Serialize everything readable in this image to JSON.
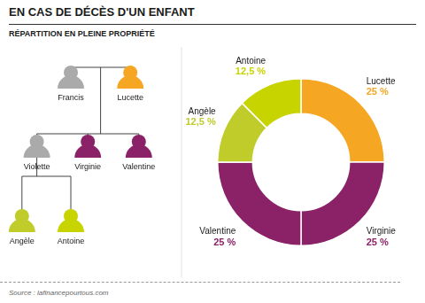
{
  "chart_data": {
    "type": "doughnut",
    "title": "EN CAS DE DÉCÈS D'UN ENFANT",
    "subtitle": "RÉPARTITION EN PLEINE PROPRIÉTÉ",
    "categories": [
      "Lucette",
      "Virginie",
      "Valentine",
      "Angèle",
      "Antoine"
    ],
    "values": [
      25,
      25,
      25,
      12.5,
      12.5
    ],
    "value_labels": [
      "25 %",
      "25 %",
      "25 %",
      "12,5 %",
      "12,5 %"
    ],
    "colors": [
      "#F5A623",
      "#8B2267",
      "#8B2267",
      "#BFCC2A",
      "#C8D400"
    ],
    "data_labels": true,
    "annotations": [
      "Francis",
      "Lucette",
      "Violette",
      "Virginie",
      "Valentine",
      "Angèle",
      "Antoine"
    ],
    "footer": "Source : lafinancepourtous.com"
  }
}
